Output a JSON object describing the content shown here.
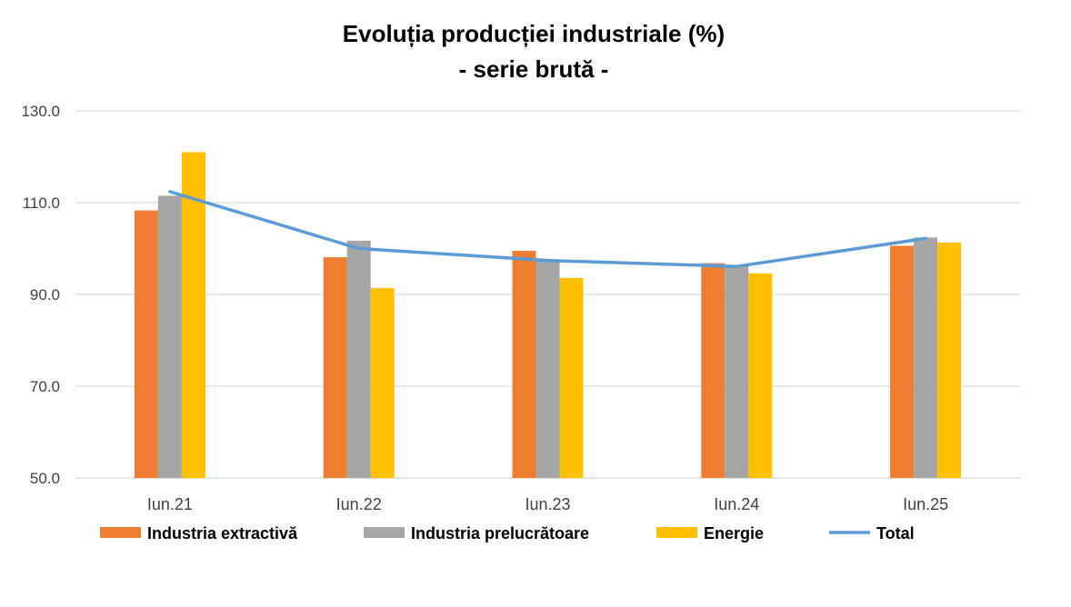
{
  "chart_data": {
    "type": "bar",
    "title": "Evoluția producției industriale (%)",
    "subtitle": "- serie brută -",
    "categories": [
      "Iun.21",
      "Iun.22",
      "Iun.23",
      "Iun.24",
      "Iun.25"
    ],
    "ylim": [
      50,
      130
    ],
    "yticks": [
      "130.0",
      "110.0",
      "90.0",
      "70.0",
      "50.0"
    ],
    "grid": true,
    "legend_position": "bottom",
    "series": [
      {
        "name": "Industria extractivă",
        "type": "bar",
        "color": "#ED7D31",
        "values": [
          108.3,
          98.1,
          99.5,
          96.8,
          100.6
        ]
      },
      {
        "name": "Industria prelucrătoare",
        "type": "bar",
        "color": "#A5A5A5",
        "values": [
          111.5,
          101.7,
          97.5,
          96.2,
          102.4
        ]
      },
      {
        "name": "Energie",
        "type": "bar",
        "color": "#FFC000",
        "values": [
          121.0,
          91.4,
          93.6,
          94.6,
          101.3
        ]
      },
      {
        "name": "Total",
        "type": "line",
        "color": "#5B9BD5",
        "values": [
          112.4,
          100.0,
          97.4,
          96.1,
          102.2
        ]
      }
    ]
  }
}
